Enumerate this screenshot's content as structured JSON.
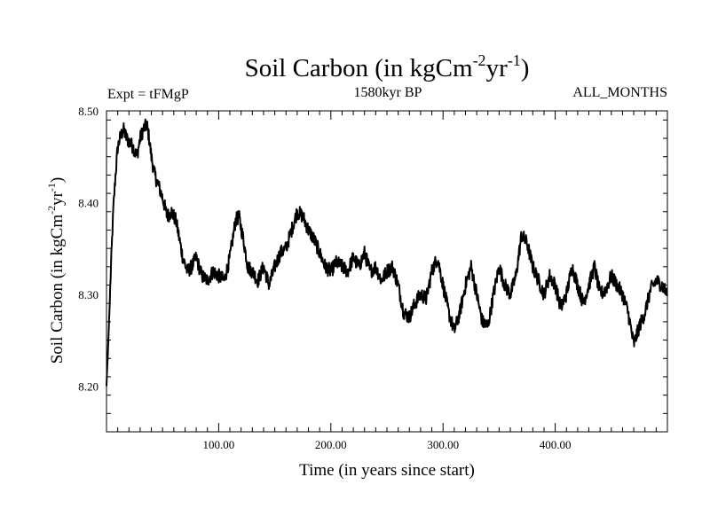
{
  "chart_data": {
    "type": "line",
    "title_main": "Soil Carbon (in kgCm",
    "title_sup1": "-2",
    "title_mid": "yr",
    "title_sup2": "-1",
    "title_end": ")",
    "subtitle_left": "Expt = tFMgP",
    "subtitle_center": "1580kyr BP",
    "subtitle_right": "ALL_MONTHS",
    "xlabel": "Time (in years since start)",
    "ylabel_main": "Soil Carbon (in kgCm",
    "ylabel_sup1": "-2",
    "ylabel_mid": "yr",
    "ylabel_sup2": "-1",
    "ylabel_end": ")",
    "xlim": [
      0,
      500
    ],
    "ylim": [
      8.15,
      8.5
    ],
    "x_ticks": [
      100,
      200,
      300,
      400
    ],
    "x_tick_labels": [
      "100.00",
      "200.00",
      "300.00",
      "400.00"
    ],
    "y_ticks": [
      8.2,
      8.3,
      8.4,
      8.5
    ],
    "y_tick_labels": [
      "8.20",
      "8.30",
      "8.40",
      "8.50"
    ],
    "grid": false,
    "line_color": "#000000",
    "series": [
      {
        "x": [
          0,
          2,
          4,
          6,
          8,
          10,
          12,
          15,
          18,
          21,
          24,
          27,
          30,
          33,
          36,
          38,
          40,
          43,
          46,
          50,
          54,
          58,
          62,
          65,
          68,
          72,
          76,
          80,
          85,
          90,
          95,
          100,
          105,
          110,
          115,
          118,
          122,
          126,
          130,
          135,
          140,
          145,
          150,
          155,
          160,
          165,
          170,
          175,
          180,
          185,
          190,
          195,
          200,
          205,
          210,
          215,
          220,
          225,
          230,
          235,
          240,
          245,
          250,
          255,
          260,
          265,
          270,
          275,
          280,
          285,
          290,
          295,
          300,
          305,
          310,
          315,
          320,
          325,
          330,
          335,
          340,
          345,
          350,
          355,
          360,
          365,
          370,
          375,
          380,
          385,
          390,
          395,
          400,
          405,
          410,
          415,
          420,
          425,
          430,
          435,
          440,
          445,
          450,
          455,
          460,
          465,
          470,
          475,
          480,
          485,
          490,
          495,
          500
        ],
        "y": [
          8.2,
          8.26,
          8.33,
          8.39,
          8.43,
          8.46,
          8.47,
          8.48,
          8.47,
          8.465,
          8.46,
          8.45,
          8.47,
          8.48,
          8.485,
          8.47,
          8.45,
          8.43,
          8.42,
          8.405,
          8.385,
          8.39,
          8.38,
          8.36,
          8.34,
          8.325,
          8.33,
          8.34,
          8.32,
          8.315,
          8.325,
          8.32,
          8.315,
          8.34,
          8.38,
          8.385,
          8.36,
          8.33,
          8.325,
          8.315,
          8.33,
          8.31,
          8.33,
          8.345,
          8.35,
          8.37,
          8.39,
          8.385,
          8.37,
          8.36,
          8.345,
          8.33,
          8.325,
          8.335,
          8.33,
          8.325,
          8.34,
          8.33,
          8.345,
          8.325,
          8.33,
          8.315,
          8.325,
          8.33,
          8.31,
          8.28,
          8.275,
          8.29,
          8.3,
          8.295,
          8.325,
          8.34,
          8.31,
          8.28,
          8.26,
          8.28,
          8.31,
          8.33,
          8.3,
          8.27,
          8.265,
          8.3,
          8.33,
          8.31,
          8.3,
          8.32,
          8.365,
          8.355,
          8.33,
          8.315,
          8.3,
          8.32,
          8.31,
          8.285,
          8.3,
          8.33,
          8.31,
          8.29,
          8.31,
          8.33,
          8.3,
          8.305,
          8.32,
          8.31,
          8.3,
          8.28,
          8.245,
          8.265,
          8.28,
          8.305,
          8.315,
          8.31,
          8.3
        ]
      }
    ]
  }
}
